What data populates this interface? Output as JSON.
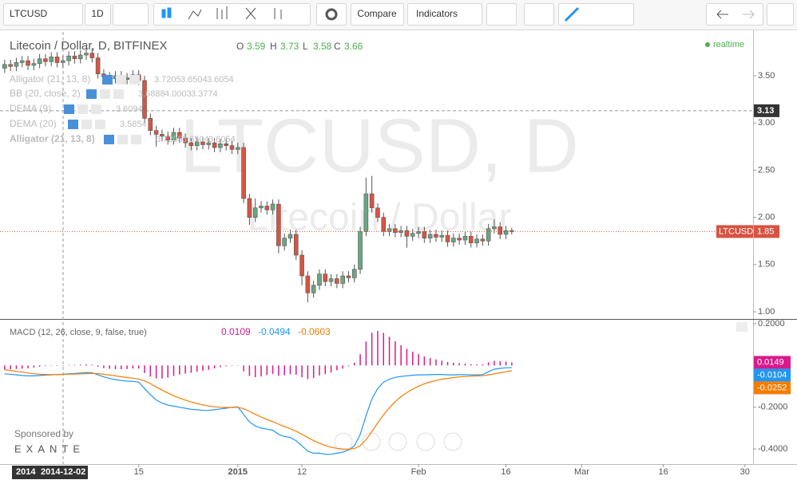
{
  "toolbar": {
    "symbol": "LTCUSD",
    "interval": "1D",
    "compare": "Compare",
    "indicators": "Indicators"
  },
  "chart_data": [
    {
      "type": "candlestick",
      "title": "Litecoin / Dollar, D, BITFINEX",
      "watermark": "LTCUSD, D",
      "watermark_subtitle": "Litecoin / Dollar",
      "status": "realtime",
      "ohlc_legend": [
        {
          "label": "O",
          "value": 3.59
        },
        {
          "label": "H",
          "value": 3.73
        },
        {
          "label": "L",
          "value": 3.58
        },
        {
          "label": "C",
          "value": 3.66
        }
      ],
      "indicators": [
        {
          "name": "Alligator (21, 13, 8)",
          "values": [
            3.7205,
            3.6504,
            3.6054
          ]
        },
        {
          "name": "BB (20, close, 2)",
          "values": [
            3.6888,
            4.0003,
            3.3774
          ]
        },
        {
          "name": "DEMA (9)",
          "values": [
            3.6094
          ]
        },
        {
          "name": "DEMA (20)",
          "values": [
            3.5854
          ]
        },
        {
          "name": "Alligator (21, 13, 8)",
          "values": [
            3.7205,
            3.6504,
            3.6054
          ]
        }
      ],
      "open": [
        3.58,
        3.62,
        3.6,
        3.64,
        3.66,
        3.61,
        3.63,
        3.68,
        3.65,
        3.7,
        3.64,
        3.66,
        3.71,
        3.68,
        3.72,
        3.74,
        3.69,
        3.52,
        3.49,
        3.47,
        3.5,
        3.46,
        3.48,
        3.51,
        3.45,
        3.05,
        2.92,
        2.88,
        2.86,
        2.82,
        2.9,
        2.84,
        2.79,
        2.76,
        2.8,
        2.77,
        2.79,
        2.74,
        2.78,
        2.76,
        2.72,
        2.74,
        2.2,
        2.0,
        2.1,
        2.12,
        2.08,
        2.14,
        1.7,
        1.78,
        1.82,
        1.6,
        1.38,
        1.2,
        1.28,
        1.4,
        1.32,
        1.35,
        1.3,
        1.38,
        1.36,
        1.45,
        1.85,
        2.25,
        2.1,
        2.0,
        1.85,
        1.88,
        1.84,
        1.86,
        1.8,
        1.83,
        1.85,
        1.78,
        1.82,
        1.79,
        1.81,
        1.74,
        1.78,
        1.76,
        1.8,
        1.73,
        1.77,
        1.75,
        1.88,
        1.9,
        1.82,
        1.86
      ],
      "high": [
        3.67,
        3.67,
        3.69,
        3.71,
        3.71,
        3.68,
        3.73,
        3.73,
        3.75,
        3.75,
        3.71,
        3.76,
        3.76,
        3.77,
        3.79,
        3.79,
        3.74,
        3.57,
        3.54,
        3.55,
        3.55,
        3.53,
        3.56,
        3.56,
        3.5,
        3.1,
        2.97,
        2.93,
        2.91,
        2.95,
        2.95,
        2.89,
        2.84,
        2.85,
        2.85,
        2.84,
        2.84,
        2.83,
        2.83,
        2.81,
        2.79,
        2.79,
        2.25,
        2.2,
        2.17,
        2.17,
        2.19,
        2.19,
        1.83,
        1.87,
        1.87,
        1.65,
        1.43,
        1.33,
        1.45,
        1.45,
        1.4,
        1.4,
        1.43,
        1.43,
        1.5,
        1.9,
        2.42,
        2.44,
        2.15,
        2.05,
        1.93,
        1.93,
        1.91,
        1.91,
        1.88,
        1.9,
        1.9,
        1.87,
        1.87,
        1.86,
        1.86,
        1.83,
        1.83,
        1.85,
        1.85,
        1.82,
        1.82,
        1.93,
        1.98,
        1.95,
        1.91,
        1.89
      ],
      "low": [
        3.53,
        3.55,
        3.55,
        3.59,
        3.56,
        3.56,
        3.58,
        3.6,
        3.6,
        3.59,
        3.59,
        3.61,
        3.63,
        3.63,
        3.67,
        3.64,
        3.47,
        3.44,
        3.42,
        3.42,
        3.41,
        3.41,
        3.43,
        3.4,
        3.0,
        2.87,
        2.75,
        2.81,
        2.77,
        2.77,
        2.79,
        2.74,
        2.71,
        2.71,
        2.72,
        2.72,
        2.69,
        2.69,
        2.71,
        2.67,
        2.67,
        2.15,
        1.92,
        1.95,
        2.05,
        2.03,
        2.03,
        1.62,
        1.65,
        1.73,
        1.55,
        1.28,
        1.1,
        1.15,
        1.23,
        1.27,
        1.27,
        1.25,
        1.25,
        1.31,
        1.31,
        1.4,
        1.8,
        2.05,
        1.95,
        1.8,
        1.8,
        1.79,
        1.79,
        1.68,
        1.75,
        1.78,
        1.73,
        1.73,
        1.74,
        1.74,
        1.69,
        1.69,
        1.71,
        1.71,
        1.68,
        1.68,
        1.7,
        1.7,
        1.83,
        1.77,
        1.77,
        1.82
      ],
      "close": [
        3.62,
        3.6,
        3.64,
        3.66,
        3.61,
        3.63,
        3.68,
        3.65,
        3.7,
        3.64,
        3.66,
        3.71,
        3.68,
        3.72,
        3.74,
        3.69,
        3.52,
        3.49,
        3.47,
        3.5,
        3.46,
        3.48,
        3.51,
        3.45,
        3.05,
        2.92,
        2.88,
        2.86,
        2.82,
        2.9,
        2.84,
        2.79,
        2.76,
        2.8,
        2.77,
        2.79,
        2.74,
        2.78,
        2.76,
        2.72,
        2.74,
        2.2,
        2.0,
        2.1,
        2.12,
        2.08,
        2.14,
        1.7,
        1.78,
        1.82,
        1.6,
        1.38,
        1.2,
        1.28,
        1.4,
        1.32,
        1.35,
        1.3,
        1.38,
        1.36,
        1.45,
        1.85,
        2.25,
        2.1,
        2.0,
        1.85,
        1.88,
        1.84,
        1.86,
        1.8,
        1.83,
        1.85,
        1.78,
        1.82,
        1.79,
        1.81,
        1.74,
        1.78,
        1.76,
        1.8,
        1.73,
        1.77,
        1.75,
        1.88,
        1.9,
        1.82,
        1.86,
        1.85
      ],
      "up_color": "#6ba583",
      "down_color": "#d75442",
      "xlim": [
        -0.8,
        128.4
      ],
      "ylim": [
        0.924,
        3.965
      ],
      "yticks": [
        {
          "value": 1,
          "label": "1.00"
        },
        {
          "value": 1.5,
          "label": "1.50"
        },
        {
          "value": 2,
          "label": "2.00"
        },
        {
          "value": 2.5,
          "label": "2.50"
        },
        {
          "value": 3,
          "label": "3.00"
        },
        {
          "value": 3.5,
          "label": "3.50"
        }
      ],
      "crosshair_price": 3.13,
      "crosshair_date_year": "2014",
      "crosshair_date": "2014-12-02",
      "sponsor": "Sponsored by",
      "sponsor_name": "EXANTE"
    },
    {
      "type": "macd",
      "title": "MACD (12, 26, close, 9, false, true)",
      "legend_values": [
        0.0109,
        -0.0494,
        -0.0603
      ],
      "series": [
        {
          "style": "histogram",
          "color": "#d81b8c",
          "values": [
            -0.02,
            -0.018,
            -0.017,
            -0.016,
            -0.014,
            -0.01,
            -0.006,
            -0.003,
            -0.001,
            0.001,
            0.001,
            0.002,
            0.003,
            0.004,
            0.005,
            0.003,
            -0.006,
            -0.013,
            -0.016,
            -0.018,
            -0.018,
            -0.017,
            -0.015,
            -0.015,
            -0.036,
            -0.053,
            -0.062,
            -0.062,
            -0.058,
            -0.05,
            -0.044,
            -0.039,
            -0.035,
            -0.03,
            -0.026,
            -0.021,
            -0.014,
            -0.008,
            -0.004,
            0.001,
            0.002,
            -0.028,
            -0.05,
            -0.056,
            -0.053,
            -0.046,
            -0.041,
            -0.049,
            -0.047,
            -0.042,
            -0.045,
            -0.056,
            -0.065,
            -0.06,
            -0.048,
            -0.042,
            -0.034,
            -0.023,
            -0.015,
            -0.004,
            0.013,
            0.054,
            0.115,
            0.156,
            0.165,
            0.156,
            0.137,
            0.116,
            0.097,
            0.08,
            0.066,
            0.054,
            0.043,
            0.035,
            0.029,
            0.023,
            0.017,
            0.013,
            0.011,
            0.009,
            0.006,
            0.005,
            0.005,
            0.015,
            0.022,
            0.021,
            0.019,
            0.0149
          ]
        },
        {
          "style": "line",
          "color": "#2196f3",
          "values": [
            -0.04,
            -0.042,
            -0.045,
            -0.048,
            -0.05,
            -0.05,
            -0.048,
            -0.046,
            -0.045,
            -0.043,
            -0.042,
            -0.04,
            -0.038,
            -0.036,
            -0.034,
            -0.035,
            -0.045,
            -0.055,
            -0.062,
            -0.068,
            -0.072,
            -0.075,
            -0.076,
            -0.08,
            -0.11,
            -0.14,
            -0.165,
            -0.18,
            -0.19,
            -0.195,
            -0.2,
            -0.205,
            -0.21,
            -0.212,
            -0.215,
            -0.215,
            -0.212,
            -0.208,
            -0.205,
            -0.2,
            -0.198,
            -0.235,
            -0.27,
            -0.29,
            -0.3,
            -0.305,
            -0.31,
            -0.33,
            -0.34,
            -0.345,
            -0.36,
            -0.385,
            -0.41,
            -0.42,
            -0.42,
            -0.425,
            -0.425,
            -0.42,
            -0.415,
            -0.405,
            -0.385,
            -0.33,
            -0.24,
            -0.16,
            -0.11,
            -0.08,
            -0.065,
            -0.057,
            -0.052,
            -0.05,
            -0.047,
            -0.045,
            -0.045,
            -0.044,
            -0.043,
            -0.043,
            -0.045,
            -0.045,
            -0.044,
            -0.044,
            -0.045,
            -0.045,
            -0.044,
            -0.03,
            -0.018,
            -0.014,
            -0.011,
            -0.0104
          ]
        },
        {
          "style": "line",
          "color": "#f57c00",
          "values": [
            -0.02,
            -0.024,
            -0.028,
            -0.032,
            -0.036,
            -0.04,
            -0.042,
            -0.043,
            -0.044,
            -0.044,
            -0.043,
            -0.042,
            -0.041,
            -0.04,
            -0.039,
            -0.038,
            -0.039,
            -0.042,
            -0.046,
            -0.05,
            -0.054,
            -0.058,
            -0.061,
            -0.065,
            -0.074,
            -0.087,
            -0.103,
            -0.118,
            -0.132,
            -0.145,
            -0.156,
            -0.166,
            -0.175,
            -0.182,
            -0.189,
            -0.194,
            -0.198,
            -0.2,
            -0.201,
            -0.201,
            -0.2,
            -0.207,
            -0.22,
            -0.234,
            -0.247,
            -0.259,
            -0.269,
            -0.281,
            -0.293,
            -0.303,
            -0.315,
            -0.329,
            -0.345,
            -0.36,
            -0.372,
            -0.383,
            -0.391,
            -0.397,
            -0.4,
            -0.401,
            -0.398,
            -0.384,
            -0.355,
            -0.316,
            -0.275,
            -0.236,
            -0.202,
            -0.173,
            -0.149,
            -0.13,
            -0.113,
            -0.099,
            -0.088,
            -0.079,
            -0.072,
            -0.066,
            -0.062,
            -0.058,
            -0.055,
            -0.053,
            -0.051,
            -0.05,
            -0.049,
            -0.045,
            -0.04,
            -0.035,
            -0.03,
            -0.0252
          ]
        }
      ],
      "xlim": [
        -0.8,
        128.4
      ],
      "xticks": [
        {
          "value": 23,
          "label": "15"
        },
        {
          "value": 40,
          "label": "2015"
        },
        {
          "value": 51,
          "label": "12"
        },
        {
          "value": 71,
          "label": "Feb"
        },
        {
          "value": 86,
          "label": "16"
        },
        {
          "value": 99,
          "label": "Mar"
        },
        {
          "value": 113,
          "label": "16"
        },
        {
          "value": 127,
          "label": "30"
        }
      ],
      "ylim": [
        -0.472,
        0.215
      ],
      "yticks": [
        {
          "value": 0.2,
          "label": "0.2000"
        },
        {
          "value": -0.2,
          "label": "-0.2000"
        },
        {
          "value": -0.4,
          "label": "-0.4000"
        }
      ]
    }
  ]
}
